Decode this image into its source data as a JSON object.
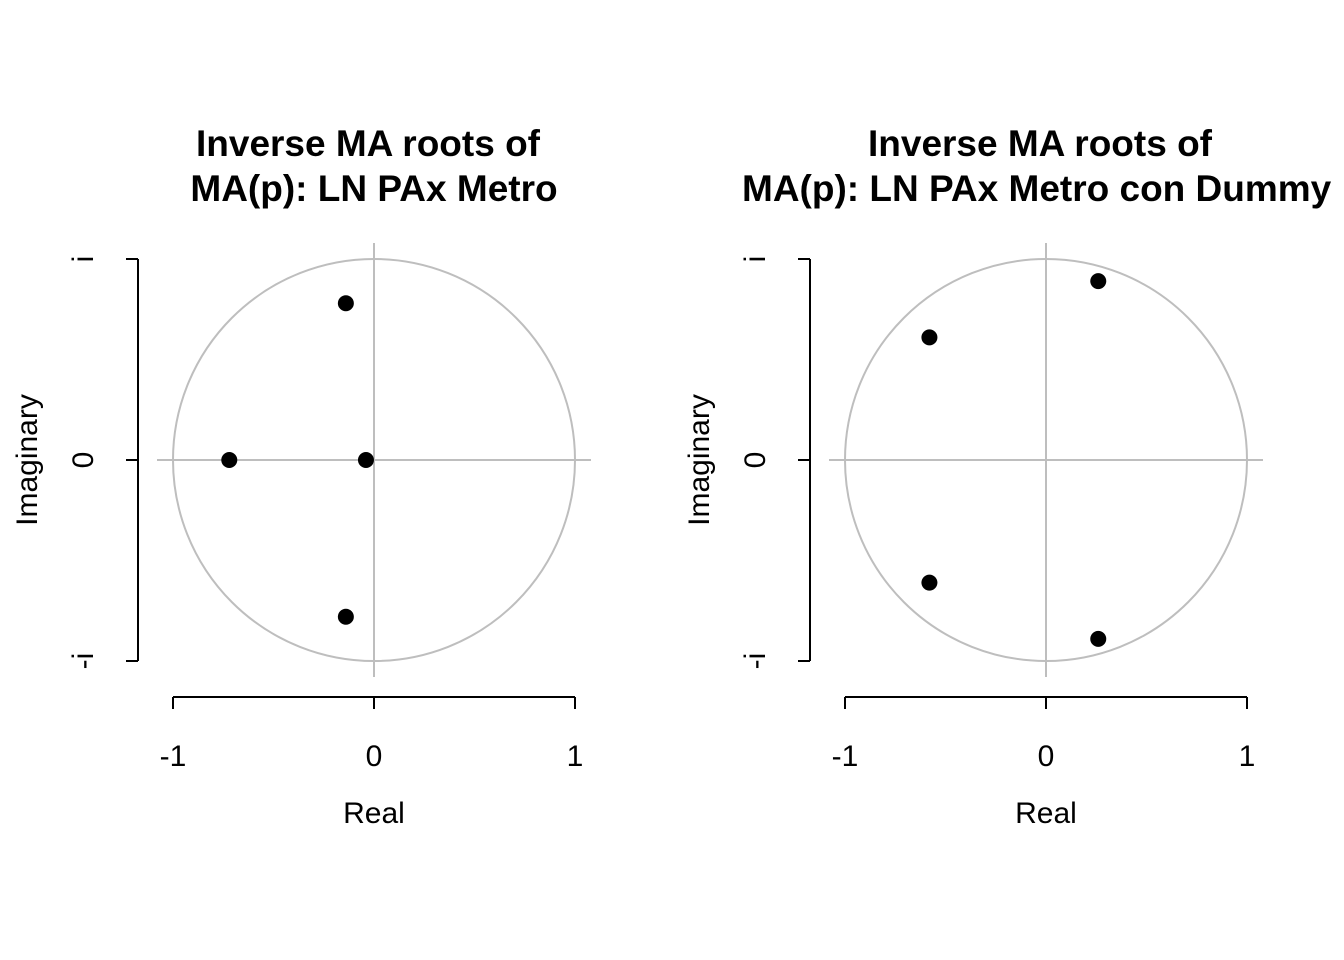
{
  "chart_data": [
    {
      "type": "scatter",
      "title_line1": "Inverse MA roots of",
      "title_line2": "MA(p): LN PAx Metro",
      "xlabel": "Real",
      "ylabel": "Imaginary",
      "xlim": [
        -1,
        1
      ],
      "ylim": [
        -1,
        1
      ],
      "x_ticks": [
        {
          "value": -1,
          "label": "-1"
        },
        {
          "value": 0,
          "label": "0"
        },
        {
          "value": 1,
          "label": "1"
        }
      ],
      "y_ticks": [
        {
          "value": -1,
          "label": "-i"
        },
        {
          "value": 0,
          "label": "0"
        },
        {
          "value": 1,
          "label": "i"
        }
      ],
      "unit_circle": true,
      "points": [
        {
          "x": -0.14,
          "y": 0.78
        },
        {
          "x": -0.72,
          "y": 0.0
        },
        {
          "x": -0.04,
          "y": 0.0
        },
        {
          "x": -0.14,
          "y": -0.78
        }
      ],
      "colors": {
        "points": "#000000",
        "reference": "#bebebe"
      }
    },
    {
      "type": "scatter",
      "title_line1": "Inverse MA roots of",
      "title_line2": "MA(p): LN PAx Metro con Dummy",
      "xlabel": "Real",
      "ylabel": "Imaginary",
      "xlim": [
        -1,
        1
      ],
      "ylim": [
        -1,
        1
      ],
      "x_ticks": [
        {
          "value": -1,
          "label": "-1"
        },
        {
          "value": 0,
          "label": "0"
        },
        {
          "value": 1,
          "label": "1"
        }
      ],
      "y_ticks": [
        {
          "value": -1,
          "label": "-i"
        },
        {
          "value": 0,
          "label": "0"
        },
        {
          "value": 1,
          "label": "i"
        }
      ],
      "unit_circle": true,
      "points": [
        {
          "x": 0.26,
          "y": 0.89
        },
        {
          "x": -0.58,
          "y": 0.61
        },
        {
          "x": -0.58,
          "y": -0.61
        },
        {
          "x": 0.26,
          "y": -0.89
        }
      ],
      "colors": {
        "points": "#000000",
        "reference": "#bebebe"
      }
    }
  ]
}
